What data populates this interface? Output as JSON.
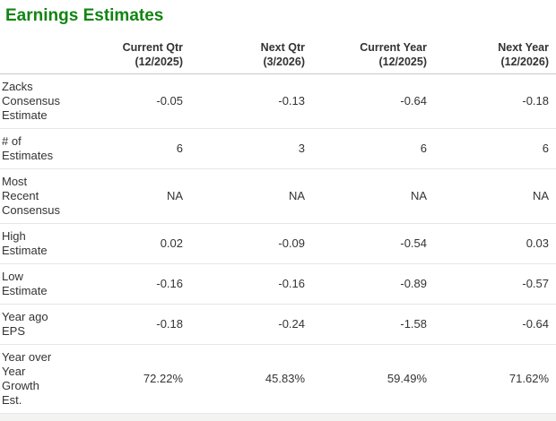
{
  "title": "Earnings Estimates",
  "colors": {
    "title_green": "#128412",
    "text": "#333333",
    "header_border": "#c9c9c9",
    "row_border": "#e6e6e6"
  },
  "table": {
    "columns": [
      "Current Qtr\n(12/2025)",
      "Next Qtr\n(3/2026)",
      "Current Year\n(12/2025)",
      "Next Year\n(12/2026)"
    ],
    "rows": [
      {
        "label": "Zacks\nConsensus\nEstimate",
        "values": [
          "-0.05",
          "-0.13",
          "-0.64",
          "-0.18"
        ]
      },
      {
        "label": "# of\nEstimates",
        "values": [
          "6",
          "3",
          "6",
          "6"
        ]
      },
      {
        "label": "Most\nRecent\nConsensus",
        "values": [
          "NA",
          "NA",
          "NA",
          "NA"
        ]
      },
      {
        "label": "High\nEstimate",
        "values": [
          "0.02",
          "-0.09",
          "-0.54",
          "0.03"
        ]
      },
      {
        "label": "Low\nEstimate",
        "values": [
          "-0.16",
          "-0.16",
          "-0.89",
          "-0.57"
        ]
      },
      {
        "label": "Year ago\nEPS",
        "values": [
          "-0.18",
          "-0.24",
          "-1.58",
          "-0.64"
        ]
      },
      {
        "label": "Year over\nYear\nGrowth\nEst.",
        "values": [
          "72.22%",
          "45.83%",
          "59.49%",
          "71.62%"
        ]
      }
    ]
  }
}
